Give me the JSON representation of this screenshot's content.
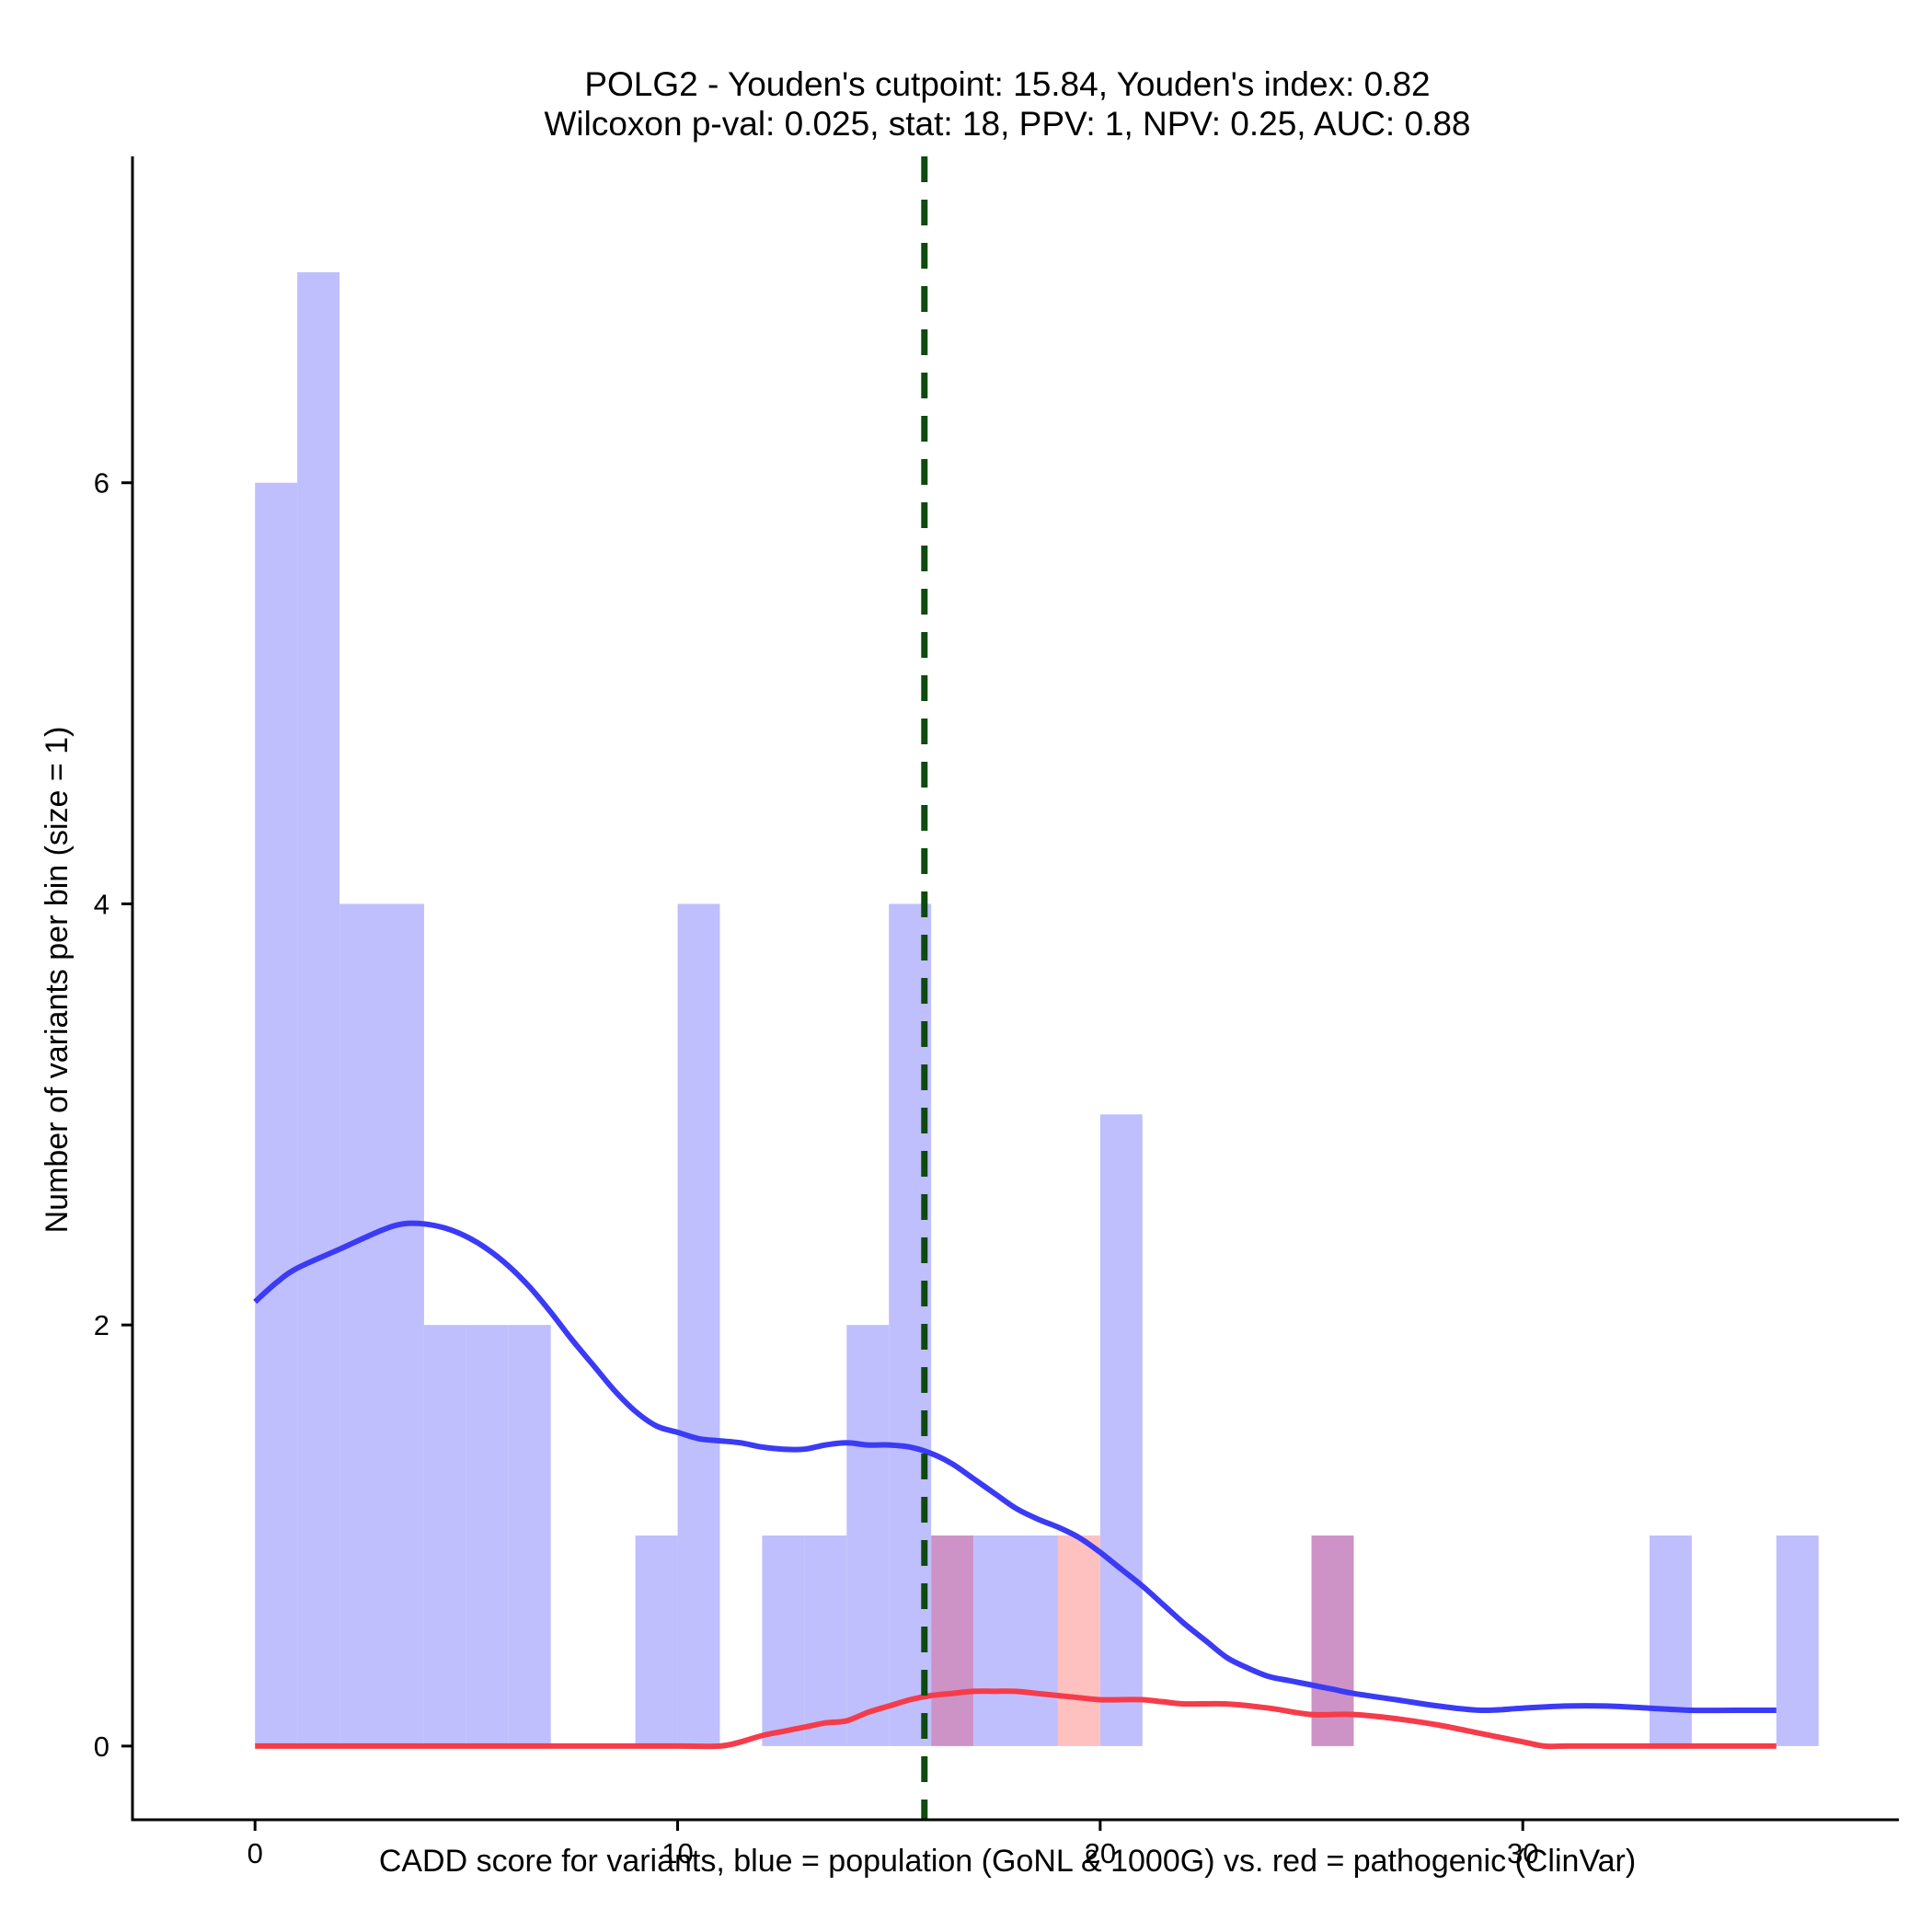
{
  "chart_data": {
    "type": "histogram_with_density",
    "title_line1": "POLG2 - Youden's cutpoint: 15.84, Youden's index: 0.82",
    "title_line2": "Wilcoxon p-val: 0.025, stat: 18, PPV: 1, NPV: 0.25, AUC: 0.88",
    "xlabel": "CADD score for variants, blue = population (GoNL & 1000G) vs. red = pathogenic (ClinVar)",
    "ylabel": "Number of variants per bin (size = 1)",
    "xlim": [
      -2.9,
      38.9
    ],
    "ylim": [
      -0.35,
      7.55
    ],
    "x_ticks": [
      0,
      10,
      20,
      30
    ],
    "y_ticks": [
      0,
      2,
      4,
      6
    ],
    "bin_width": 1,
    "cutpoint": 15.84,
    "colors": {
      "population_bar": "#bfbffd",
      "pathogenic_bar": "#ffc0c0",
      "overlap_bar": "#cd92c6",
      "population_density": "#3b3bf5",
      "pathogenic_density": "#f53c4a",
      "cutpoint_line": "#0f4a0f",
      "axis": "#000000"
    },
    "series": [
      {
        "name": "population",
        "bins": [
          {
            "x0": 0,
            "count": 6
          },
          {
            "x0": 1,
            "count": 7
          },
          {
            "x0": 2,
            "count": 4
          },
          {
            "x0": 3,
            "count": 4
          },
          {
            "x0": 4,
            "count": 2
          },
          {
            "x0": 5,
            "count": 2
          },
          {
            "x0": 6,
            "count": 2
          },
          {
            "x0": 9,
            "count": 1
          },
          {
            "x0": 10,
            "count": 4
          },
          {
            "x0": 12,
            "count": 1
          },
          {
            "x0": 13,
            "count": 1
          },
          {
            "x0": 14,
            "count": 2
          },
          {
            "x0": 15,
            "count": 4
          },
          {
            "x0": 16,
            "count": 1
          },
          {
            "x0": 17,
            "count": 1
          },
          {
            "x0": 18,
            "count": 1
          },
          {
            "x0": 20,
            "count": 3
          },
          {
            "x0": 25,
            "count": 1
          },
          {
            "x0": 33,
            "count": 1
          },
          {
            "x0": 36,
            "count": 1
          }
        ]
      },
      {
        "name": "pathogenic",
        "bins": [
          {
            "x0": 16,
            "count": 1
          },
          {
            "x0": 19,
            "count": 1
          },
          {
            "x0": 25,
            "count": 1
          }
        ]
      }
    ],
    "density": {
      "population": {
        "x": [
          0,
          0.5,
          1,
          2,
          3,
          3.5,
          4,
          4.5,
          5,
          5.5,
          6,
          6.5,
          7,
          7.5,
          8,
          8.5,
          9,
          9.5,
          10,
          10.5,
          11,
          11.5,
          12,
          12.5,
          13,
          13.5,
          14,
          14.5,
          15,
          15.5,
          16,
          16.5,
          17,
          17.5,
          18,
          18.5,
          19,
          19.5,
          20,
          20.5,
          21,
          21.5,
          22,
          22.5,
          23,
          23.5,
          24,
          24.5,
          25,
          25.5,
          26,
          27,
          28,
          29,
          30,
          31,
          32,
          33,
          34,
          35,
          36
        ],
        "y": [
          2.11,
          2.2,
          2.27,
          2.36,
          2.45,
          2.48,
          2.48,
          2.46,
          2.42,
          2.36,
          2.28,
          2.18,
          2.06,
          1.93,
          1.81,
          1.69,
          1.59,
          1.52,
          1.49,
          1.46,
          1.45,
          1.44,
          1.42,
          1.41,
          1.41,
          1.43,
          1.44,
          1.43,
          1.43,
          1.42,
          1.39,
          1.34,
          1.27,
          1.2,
          1.13,
          1.08,
          1.04,
          0.99,
          0.92,
          0.84,
          0.76,
          0.67,
          0.58,
          0.5,
          0.42,
          0.37,
          0.33,
          0.31,
          0.29,
          0.27,
          0.25,
          0.22,
          0.19,
          0.17,
          0.18,
          0.19,
          0.19,
          0.18,
          0.17,
          0.17,
          0.17
        ]
      },
      "pathogenic": {
        "x": [
          0,
          2,
          4,
          6,
          8,
          10,
          11,
          11.5,
          12,
          12.5,
          13,
          13.5,
          14,
          14.5,
          15,
          15.5,
          16,
          16.5,
          17,
          17.5,
          18,
          18.5,
          19,
          19.5,
          20,
          20.5,
          21,
          21.5,
          22,
          23,
          24,
          25,
          26,
          27,
          28,
          29,
          30,
          30.5,
          31,
          32,
          34,
          36
        ],
        "y": [
          0,
          0,
          0,
          0,
          0,
          0,
          0,
          0.02,
          0.05,
          0.07,
          0.09,
          0.11,
          0.12,
          0.16,
          0.19,
          0.22,
          0.24,
          0.25,
          0.26,
          0.26,
          0.26,
          0.25,
          0.24,
          0.23,
          0.22,
          0.22,
          0.22,
          0.21,
          0.2,
          0.2,
          0.18,
          0.15,
          0.15,
          0.13,
          0.1,
          0.06,
          0.02,
          0,
          0,
          0,
          0,
          0
        ]
      }
    }
  }
}
